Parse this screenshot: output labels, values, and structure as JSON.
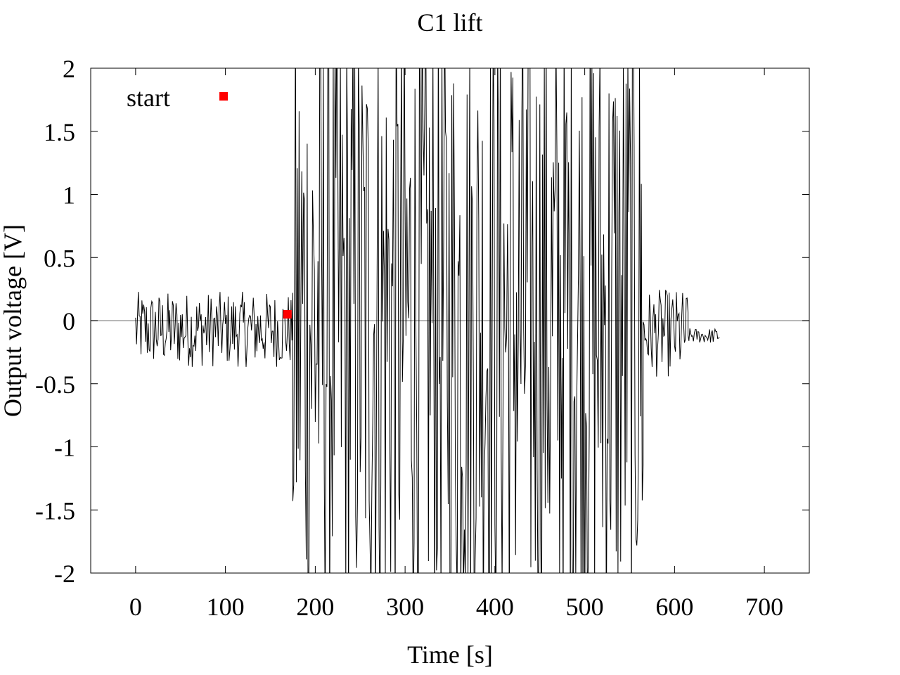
{
  "chart_data": {
    "type": "line",
    "title": "C1 lift",
    "xlabel": "Time [s]",
    "ylabel": "Output voltage [V]",
    "xlim": [
      -50,
      750
    ],
    "ylim": [
      -2,
      2
    ],
    "xticks": [
      0,
      100,
      200,
      300,
      400,
      500,
      600,
      700
    ],
    "xtick_labels": [
      "0",
      "100",
      "200",
      "300",
      "400",
      "500",
      "600",
      "700"
    ],
    "yticks": [
      2,
      1.5,
      1,
      0.5,
      0,
      -0.5,
      -1,
      -1.5,
      -2
    ],
    "ytick_labels": [
      "2",
      "1.5",
      "1",
      "0.5",
      "0",
      "-0.5",
      "-1",
      "-1.5",
      "-2"
    ],
    "grid": false,
    "zero_line": true,
    "legend_position": "top-left",
    "series": [
      {
        "name": "start",
        "style": "markers",
        "color": "#ff0000",
        "x": [
          169
        ],
        "y": [
          0.05
        ]
      },
      {
        "style": "line",
        "color": "#000000",
        "segments": [
          {
            "t_start": 0,
            "t_end": 175,
            "center": -0.07,
            "amplitude": 0.3,
            "step": 1.0
          },
          {
            "t_start": 175,
            "t_end": 565,
            "center": 0.0,
            "amplitude": 2.6,
            "step": 1.0
          },
          {
            "t_start": 565,
            "t_end": 615,
            "center": -0.1,
            "amplitude": 0.35,
            "step": 1.0
          },
          {
            "t_start": 615,
            "t_end": 650,
            "center": -0.12,
            "amplitude": 0.06,
            "step": 1.0
          }
        ]
      }
    ]
  },
  "colors": {
    "signal": "#000000",
    "marker": "#ff0000",
    "zero_line": "#a0a0a0",
    "frame": "#000000"
  }
}
